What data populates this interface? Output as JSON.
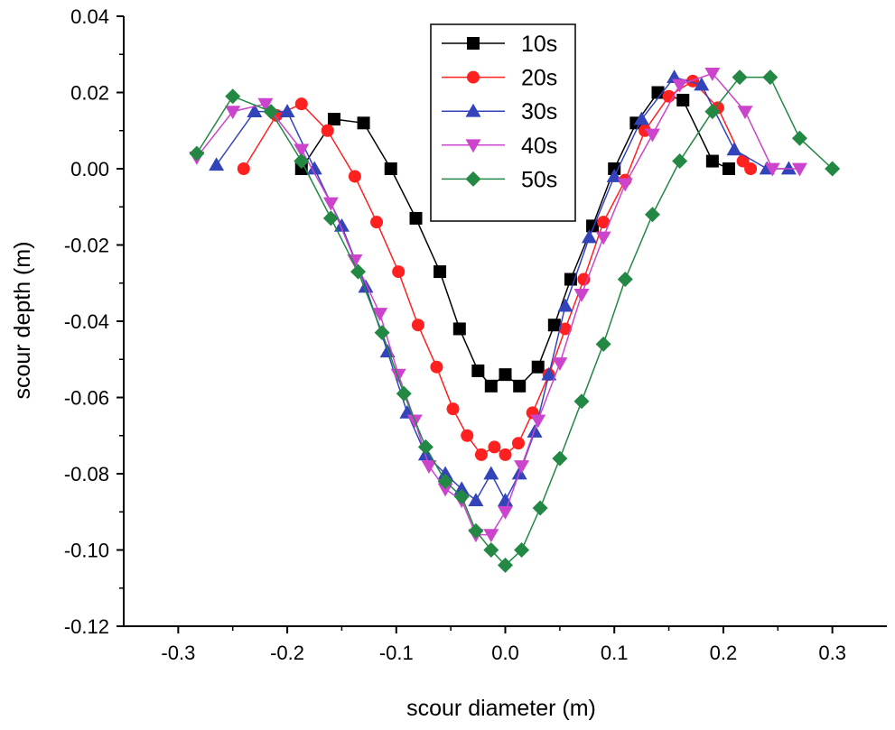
{
  "chart_data": {
    "type": "line",
    "title": "",
    "xlabel": "scour diameter (m)",
    "ylabel": "scour depth (m)",
    "xlim": [
      -0.35,
      0.35
    ],
    "ylim": [
      -0.12,
      0.04
    ],
    "xticks": [
      -0.3,
      -0.2,
      -0.1,
      0.0,
      0.1,
      0.2,
      0.3
    ],
    "xtick_labels": [
      "-0.3",
      "-0.2",
      "-0.1",
      "0.0",
      "0.1",
      "0.2",
      "0.3"
    ],
    "yticks": [
      0.04,
      0.02,
      0.0,
      -0.02,
      -0.04,
      -0.06,
      -0.08,
      -0.1,
      -0.12
    ],
    "ytick_labels": [
      "0.04",
      "0.02",
      "0.00",
      "-0.02",
      "-0.04",
      "-0.06",
      "-0.08",
      "-0.10",
      "-0.12"
    ],
    "grid": false,
    "legend_position": "top-center",
    "series": [
      {
        "name": "10s",
        "color": "#000000",
        "marker": "square",
        "x": [
          -0.187,
          -0.157,
          -0.13,
          -0.105,
          -0.082,
          -0.06,
          -0.042,
          -0.025,
          -0.013,
          0.0,
          0.013,
          0.03,
          0.045,
          0.06,
          0.08,
          0.1,
          0.12,
          0.14,
          0.163,
          0.19,
          0.205
        ],
        "y": [
          0.0,
          0.013,
          0.012,
          0.0,
          -0.013,
          -0.027,
          -0.042,
          -0.053,
          -0.057,
          -0.054,
          -0.057,
          -0.052,
          -0.041,
          -0.029,
          -0.015,
          0.0,
          0.012,
          0.02,
          0.018,
          0.002,
          0.0
        ]
      },
      {
        "name": "20s",
        "color": "#ff2020",
        "marker": "circle",
        "x": [
          -0.24,
          -0.21,
          -0.187,
          -0.163,
          -0.138,
          -0.118,
          -0.098,
          -0.08,
          -0.063,
          -0.048,
          -0.035,
          -0.022,
          -0.01,
          0.0,
          0.012,
          0.025,
          0.04,
          0.055,
          0.072,
          0.09,
          0.11,
          0.128,
          0.15,
          0.172,
          0.195,
          0.218,
          0.225
        ],
        "y": [
          0.0,
          0.014,
          0.017,
          0.01,
          -0.002,
          -0.014,
          -0.027,
          -0.041,
          -0.052,
          -0.063,
          -0.07,
          -0.075,
          -0.073,
          -0.075,
          -0.072,
          -0.064,
          -0.054,
          -0.042,
          -0.029,
          -0.014,
          -0.003,
          0.01,
          0.019,
          0.023,
          0.016,
          0.002,
          0.0
        ]
      },
      {
        "name": "30s",
        "color": "#3344bb",
        "marker": "triangle-up",
        "x": [
          -0.265,
          -0.23,
          -0.2,
          -0.175,
          -0.15,
          -0.128,
          -0.108,
          -0.09,
          -0.073,
          -0.055,
          -0.04,
          -0.027,
          -0.013,
          0.0,
          0.013,
          0.027,
          0.04,
          0.055,
          0.077,
          0.1,
          0.125,
          0.155,
          0.18,
          0.21,
          0.24,
          0.26
        ],
        "y": [
          0.001,
          0.015,
          0.015,
          0.0,
          -0.015,
          -0.031,
          -0.048,
          -0.064,
          -0.075,
          -0.08,
          -0.084,
          -0.087,
          -0.08,
          -0.087,
          -0.08,
          -0.069,
          -0.054,
          -0.036,
          -0.018,
          -0.002,
          0.013,
          0.024,
          0.022,
          0.005,
          0.0,
          0.0
        ]
      },
      {
        "name": "40s",
        "color": "#cc44cc",
        "marker": "triangle-down",
        "x": [
          -0.283,
          -0.25,
          -0.22,
          -0.187,
          -0.16,
          -0.138,
          -0.115,
          -0.098,
          -0.083,
          -0.07,
          -0.055,
          -0.04,
          -0.027,
          -0.013,
          0.0,
          0.015,
          0.03,
          0.05,
          0.07,
          0.09,
          0.11,
          0.135,
          0.16,
          0.19,
          0.22,
          0.245,
          0.27
        ],
        "y": [
          0.003,
          0.015,
          0.017,
          0.005,
          -0.009,
          -0.024,
          -0.038,
          -0.054,
          -0.066,
          -0.078,
          -0.084,
          -0.087,
          -0.096,
          -0.096,
          -0.09,
          -0.078,
          -0.066,
          -0.051,
          -0.033,
          -0.018,
          -0.004,
          0.009,
          0.022,
          0.025,
          0.015,
          0.0,
          0.0
        ]
      },
      {
        "name": "50s",
        "color": "#228844",
        "marker": "diamond",
        "x": [
          -0.283,
          -0.25,
          -0.215,
          -0.187,
          -0.16,
          -0.135,
          -0.113,
          -0.093,
          -0.073,
          -0.055,
          -0.04,
          -0.027,
          -0.013,
          0.0,
          0.015,
          0.032,
          0.05,
          0.07,
          0.09,
          0.11,
          0.135,
          0.16,
          0.19,
          0.215,
          0.243,
          0.27,
          0.3
        ],
        "y": [
          0.004,
          0.019,
          0.015,
          0.002,
          -0.013,
          -0.027,
          -0.043,
          -0.059,
          -0.073,
          -0.082,
          -0.086,
          -0.095,
          -0.1,
          -0.104,
          -0.1,
          -0.089,
          -0.076,
          -0.061,
          -0.046,
          -0.029,
          -0.012,
          0.002,
          0.015,
          0.024,
          0.024,
          0.008,
          0.0
        ]
      }
    ]
  }
}
